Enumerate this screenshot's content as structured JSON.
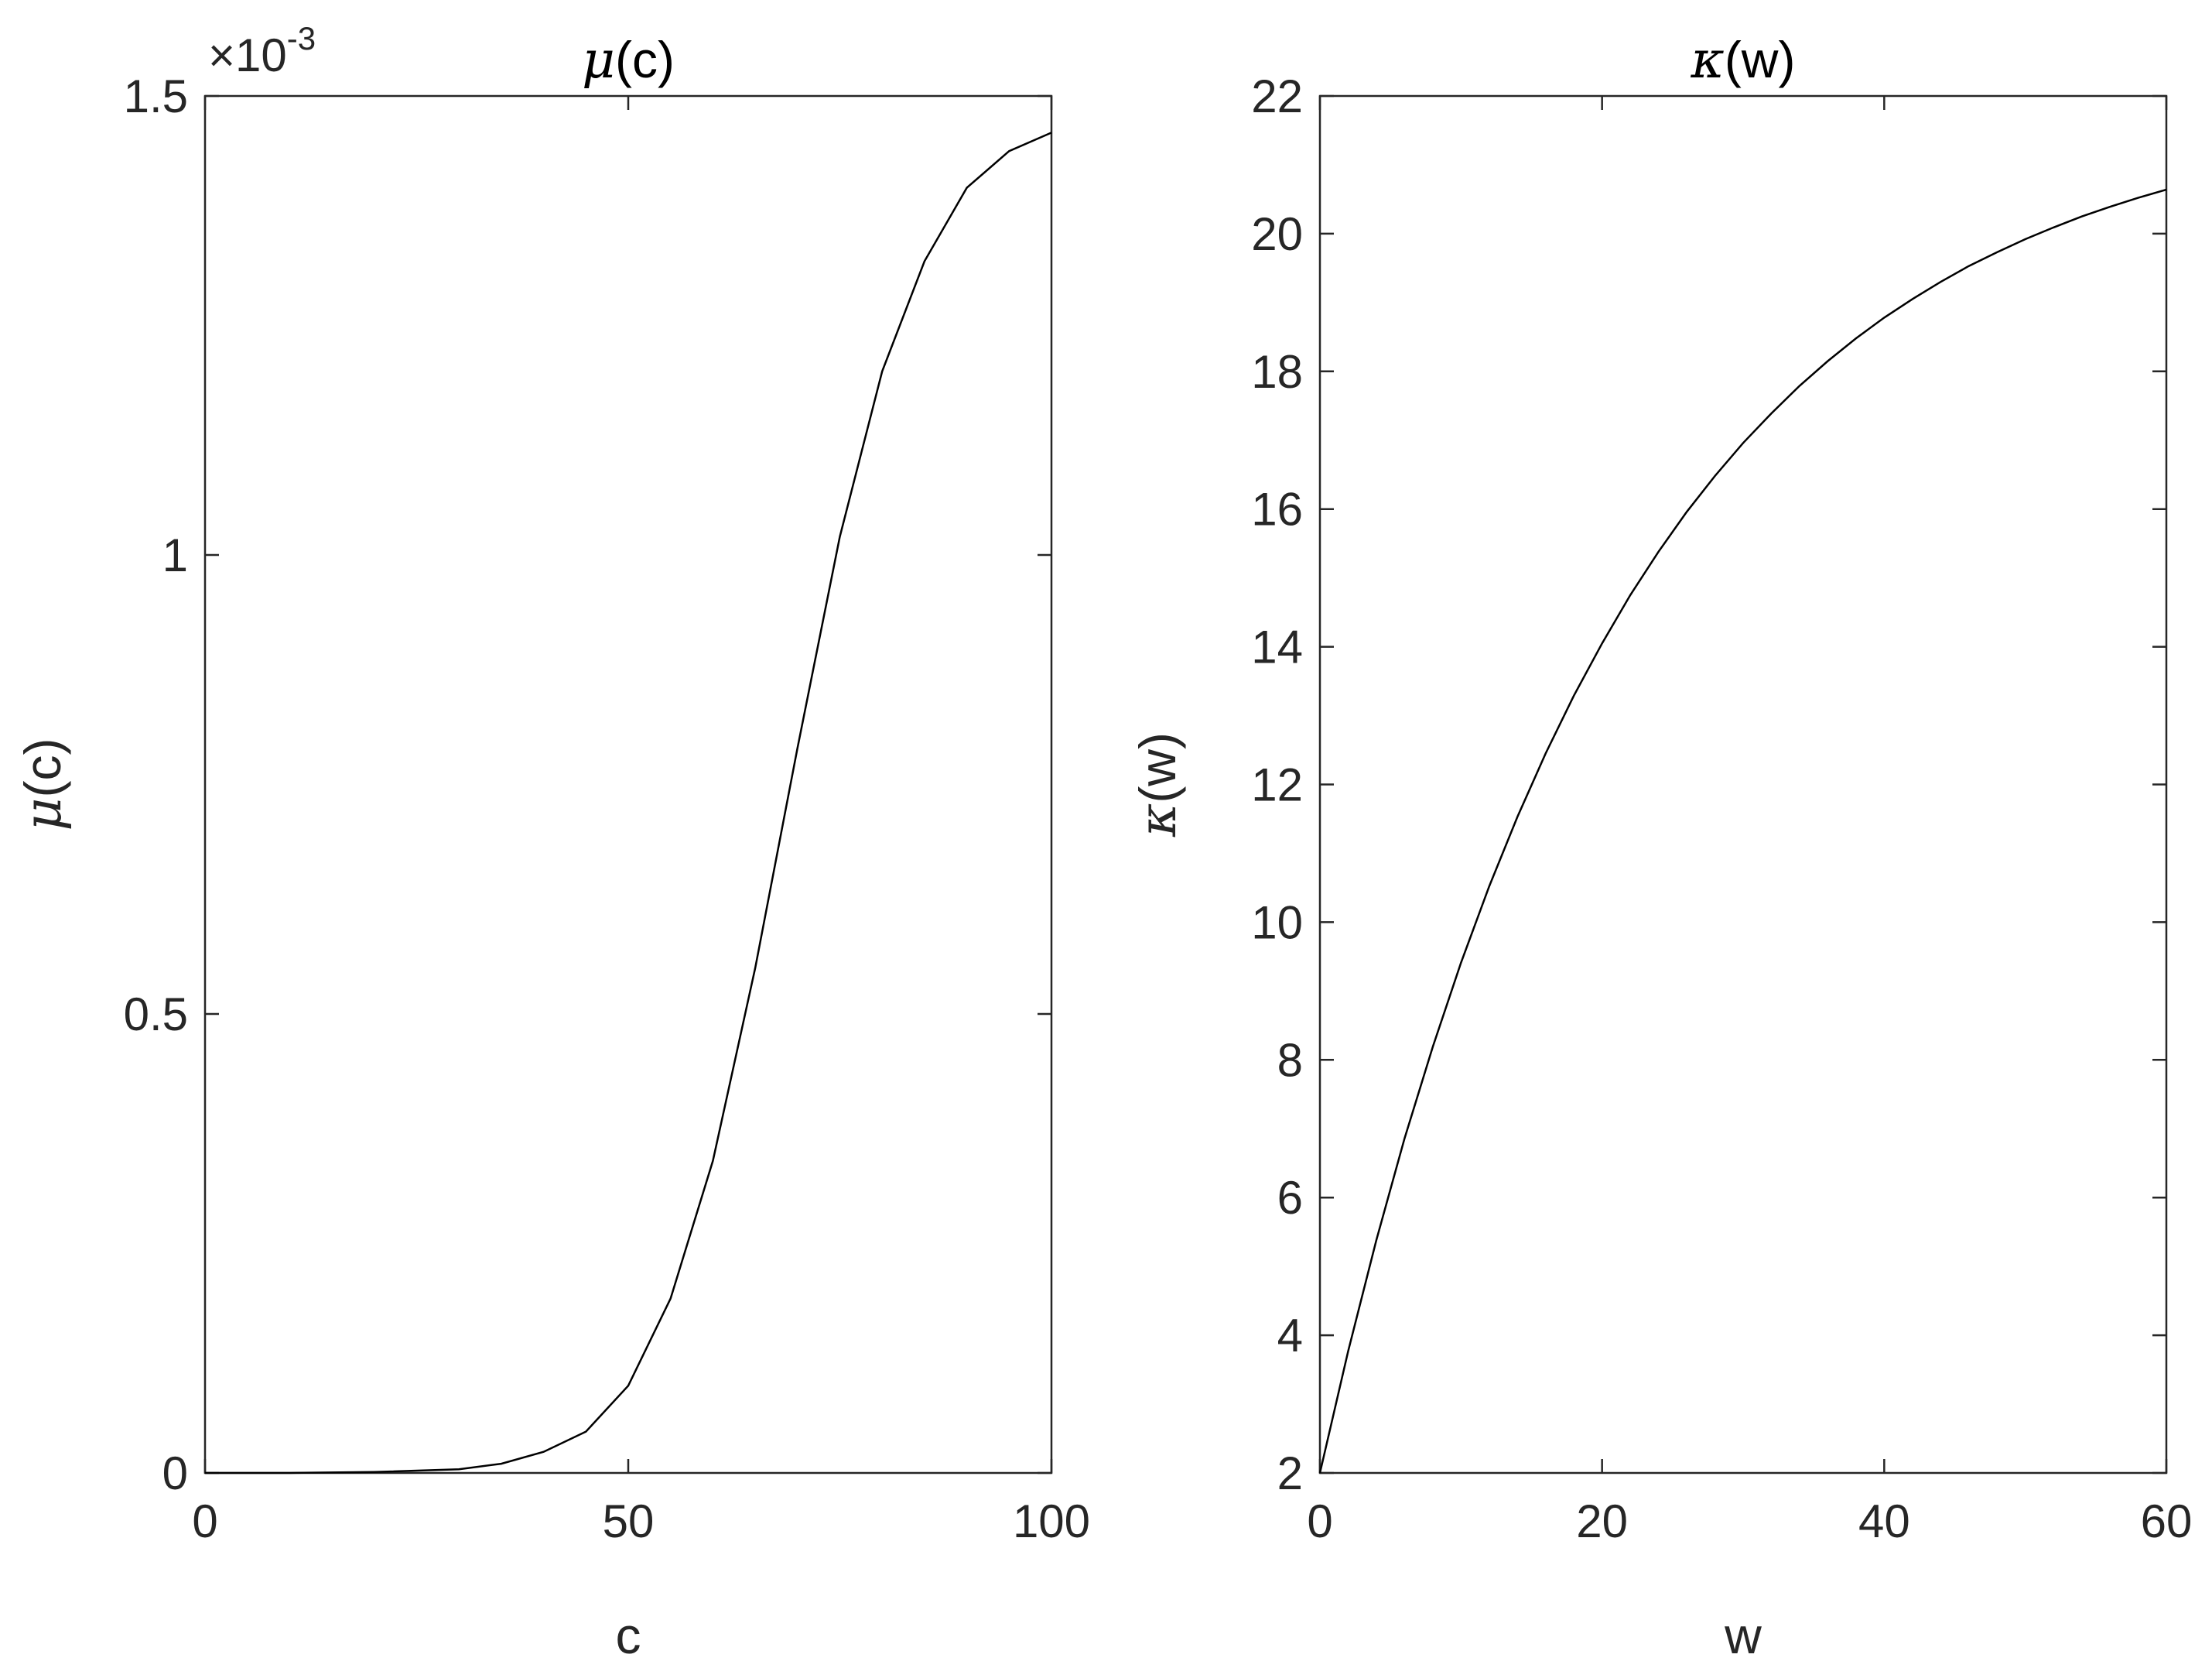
{
  "chart_data": [
    {
      "type": "line",
      "title_symbol": "μ",
      "title_arg": "(c)",
      "xlabel": "c",
      "ylabel_symbol": "μ",
      "ylabel_arg": "(c)",
      "xlim": [
        0,
        100
      ],
      "ylim": [
        0,
        1.5
      ],
      "y_exponent_prefix": "×10",
      "y_exponent": "-3",
      "xticks": [
        "0",
        "50",
        "100"
      ],
      "yticks": [
        "0",
        "0.5",
        "1",
        "1.5"
      ],
      "grid": false,
      "series": [
        {
          "x": [
            0,
            10,
            20,
            30,
            35,
            40,
            45,
            50,
            55,
            60,
            65,
            70,
            75,
            80,
            85,
            90,
            95,
            100
          ],
          "y": [
            0,
            0,
            0.001,
            0.004,
            0.01,
            0.023,
            0.045,
            0.095,
            0.19,
            0.34,
            0.55,
            0.79,
            1.02,
            1.2,
            1.32,
            1.4,
            1.44,
            1.46
          ]
        }
      ]
    },
    {
      "type": "line",
      "title_symbol": "κ",
      "title_arg": "(w)",
      "xlabel": "w",
      "ylabel_symbol": "κ",
      "ylabel_arg": "(w)",
      "xlim": [
        0,
        60
      ],
      "ylim": [
        2,
        22
      ],
      "xticks": [
        "0",
        "20",
        "40",
        "60"
      ],
      "yticks": [
        "2",
        "4",
        "6",
        "8",
        "10",
        "12",
        "14",
        "16",
        "18",
        "20",
        "22"
      ],
      "grid": false,
      "series": [
        {
          "x": [
            0,
            2,
            4,
            6,
            8,
            10,
            12,
            14,
            16,
            18,
            20,
            22,
            24,
            26,
            28,
            30,
            32,
            34,
            36,
            38,
            40,
            42,
            44,
            46,
            48,
            50,
            52,
            54,
            56,
            58,
            60
          ],
          "y": [
            2.0,
            3.77,
            5.38,
            6.86,
            8.19,
            9.41,
            10.52,
            11.53,
            12.45,
            13.29,
            14.05,
            14.75,
            15.38,
            15.96,
            16.48,
            16.96,
            17.39,
            17.79,
            18.15,
            18.48,
            18.78,
            19.05,
            19.3,
            19.53,
            19.73,
            19.92,
            20.09,
            20.25,
            20.39,
            20.52,
            20.64
          ]
        }
      ]
    }
  ]
}
